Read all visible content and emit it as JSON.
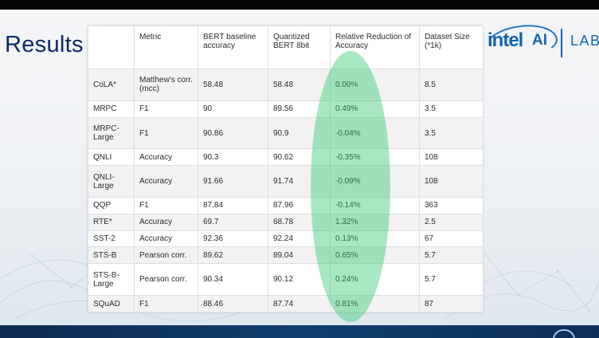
{
  "slide": {
    "title": "Results"
  },
  "logo": {
    "brand": "intel",
    "ai": "AI",
    "lab": "LAB"
  },
  "table": {
    "headers": [
      "",
      "Metric",
      "BERT baseline accuracy",
      "Quantized BERT 8bit",
      "Relative Reduction of Accuracy",
      "Dataset Size (*1k)"
    ],
    "rows": [
      [
        "CoLA*",
        "Matthew's corr. (mcc)",
        "58.48",
        "58.48",
        "0.00%",
        "8.5"
      ],
      [
        "MRPC",
        "F1",
        "90",
        "89.56",
        "0.49%",
        "3.5"
      ],
      [
        "MRPC-Large",
        "F1",
        "90.86",
        "90.9",
        "-0.04%",
        "3.5"
      ],
      [
        "QNLI",
        "Accuracy",
        "90.3",
        "90.62",
        "-0.35%",
        "108"
      ],
      [
        "QNLI-Large",
        "Accuracy",
        "91.66",
        "91.74",
        "-0.09%",
        "108"
      ],
      [
        "QQP",
        "F1",
        "87.84",
        "87.96",
        "-0.14%",
        "363"
      ],
      [
        "RTE*",
        "Accuracy",
        "69.7",
        "68.78",
        "1.32%",
        "2.5"
      ],
      [
        "SST-2",
        "Accuracy",
        "92.36",
        "92.24",
        "0.13%",
        "67"
      ],
      [
        "STS-B",
        "Pearson corr.",
        "89.62",
        "89.04",
        "0.65%",
        "5.7"
      ],
      [
        "STS-B-Large",
        "Pearson corr.",
        "90.34",
        "90.12",
        "0.24%",
        "5.7"
      ],
      [
        "SQuAD",
        "F1",
        "88.46",
        "87.74",
        "0.81%",
        "87"
      ]
    ]
  },
  "colors": {
    "title": "#0a2a66",
    "brand": "#1264b3",
    "highlight": "#2ec86e"
  }
}
